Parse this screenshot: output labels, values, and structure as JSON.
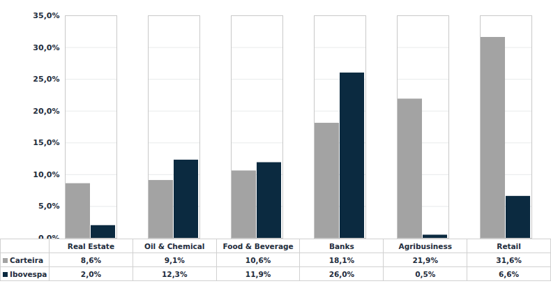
{
  "chart_data": {
    "type": "bar",
    "categories": [
      "Real Estate",
      "Oil & Chemical",
      "Food & Beverage",
      "Banks",
      "Agribusiness",
      "Retail"
    ],
    "series": [
      {
        "name": "Carteira",
        "color": "#a3a3a3",
        "values": [
          8.6,
          9.1,
          10.6,
          18.1,
          21.9,
          31.6
        ],
        "value_labels": [
          "8,6%",
          "9,1%",
          "10,6%",
          "18,1%",
          "21,9%",
          "31,6%"
        ]
      },
      {
        "name": "Ibovespa",
        "color": "#0b2a40",
        "values": [
          2.0,
          12.3,
          11.9,
          26.0,
          0.5,
          6.6
        ],
        "value_labels": [
          "2,0%",
          "12,3%",
          "11,9%",
          "26,0%",
          "0,5%",
          "6,6%"
        ]
      }
    ],
    "ylim": [
      0,
      35
    ],
    "yticks": [
      {
        "value": 0,
        "label": "0,0%"
      },
      {
        "value": 5,
        "label": "5,0%"
      },
      {
        "value": 10,
        "label": "10,0%"
      },
      {
        "value": 15,
        "label": "15,0%"
      },
      {
        "value": 20,
        "label": "20,0%"
      },
      {
        "value": 25,
        "label": "25,0%"
      },
      {
        "value": 30,
        "label": "30,0%"
      },
      {
        "value": 35,
        "label": "35,0%"
      }
    ],
    "grid": true
  }
}
